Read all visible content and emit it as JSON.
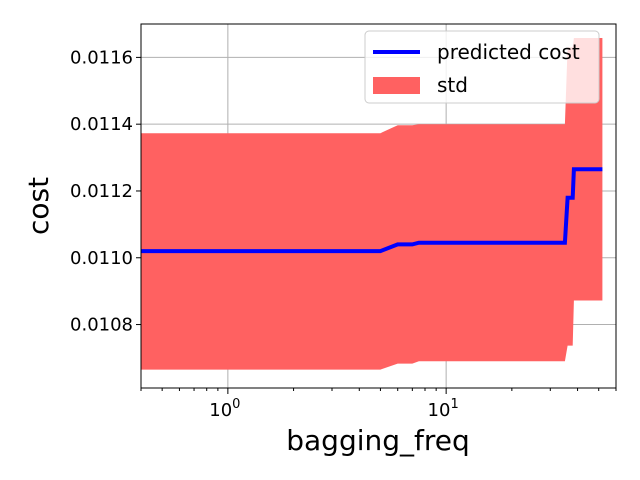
{
  "chart_data": {
    "type": "line",
    "title": "",
    "xlabel": "bagging_freq",
    "ylabel": "cost",
    "xscale": "log",
    "xlim": [
      0.4,
      60
    ],
    "ylim": [
      0.01061,
      0.0117
    ],
    "grid": true,
    "legend_position": "top-right",
    "x_ticks": [
      {
        "value": 1,
        "label": "10",
        "exp": "0"
      },
      {
        "value": 10,
        "label": "10",
        "exp": "1"
      }
    ],
    "y_ticks": [
      {
        "value": 0.0108,
        "label": "0.0108"
      },
      {
        "value": 0.011,
        "label": "0.0110"
      },
      {
        "value": 0.0112,
        "label": "0.0112"
      },
      {
        "value": 0.0114,
        "label": "0.0114"
      },
      {
        "value": 0.0116,
        "label": "0.0116"
      }
    ],
    "series": [
      {
        "name": "predicted cost",
        "kind": "line",
        "color": "#0000ff",
        "points": [
          [
            0.4,
            0.01102
          ],
          [
            5.0,
            0.01102
          ],
          [
            6.0,
            0.01104
          ],
          [
            7.0,
            0.01104
          ],
          [
            7.5,
            0.011045
          ],
          [
            35.0,
            0.011045
          ],
          [
            36.0,
            0.01118
          ],
          [
            38.0,
            0.01118
          ],
          [
            38.5,
            0.011265
          ],
          [
            52.0,
            0.011265
          ]
        ]
      },
      {
        "name": "std",
        "kind": "band",
        "color": "#ff6161",
        "points": [
          {
            "x": 0.4,
            "lower": 0.010665,
            "upper": 0.011373
          },
          {
            "x": 5.0,
            "lower": 0.010665,
            "upper": 0.011373
          },
          {
            "x": 6.0,
            "lower": 0.010683,
            "upper": 0.011397
          },
          {
            "x": 7.0,
            "lower": 0.010683,
            "upper": 0.011397
          },
          {
            "x": 7.5,
            "lower": 0.01069,
            "upper": 0.0114
          },
          {
            "x": 35.0,
            "lower": 0.01069,
            "upper": 0.0114
          },
          {
            "x": 36.0,
            "lower": 0.010737,
            "upper": 0.01163
          },
          {
            "x": 38.0,
            "lower": 0.010737,
            "upper": 0.01163
          },
          {
            "x": 38.5,
            "lower": 0.010872,
            "upper": 0.011658
          },
          {
            "x": 52.0,
            "lower": 0.010872,
            "upper": 0.011658
          }
        ]
      }
    ]
  }
}
